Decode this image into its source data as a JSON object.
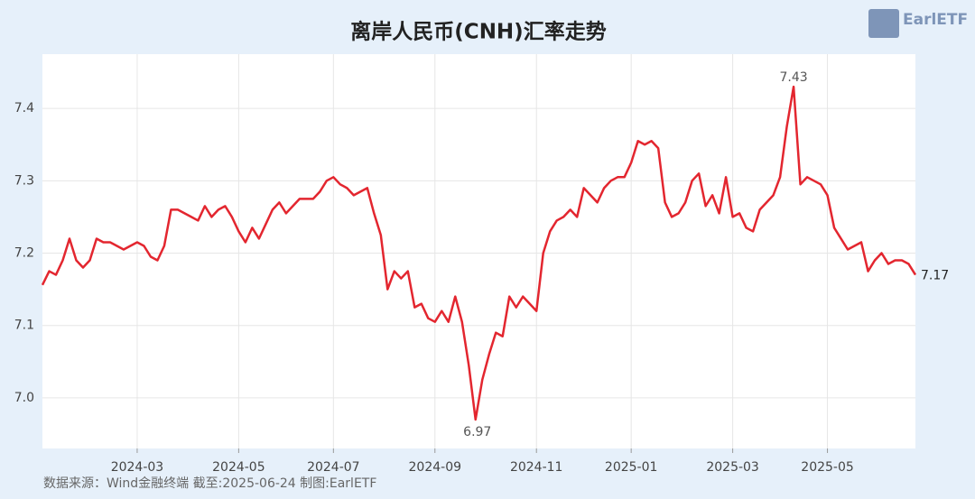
{
  "chart_data": {
    "type": "line",
    "title": "离岸人民币(CNH)汇率走势",
    "source": "数据来源：Wind金融终端 截至:2025-06-24 制图:EarlETF",
    "logo": "EarlETF",
    "color": "#e3262f",
    "grid": true,
    "ylim": [
      6.93,
      7.475
    ],
    "yticks": [
      {
        "value": 7,
        "label": "7.0"
      },
      7.1,
      7.2,
      7.3,
      7.4
    ],
    "categories": [
      null,
      null,
      null,
      null,
      null,
      null,
      null,
      null,
      null,
      null,
      null,
      null,
      null,
      null,
      "2024-03",
      null,
      null,
      null,
      null,
      null,
      null,
      null,
      null,
      null,
      null,
      null,
      null,
      null,
      null,
      "2024-05",
      null,
      null,
      null,
      null,
      null,
      null,
      null,
      null,
      null,
      null,
      null,
      null,
      null,
      "2024-07",
      null,
      null,
      null,
      null,
      null,
      null,
      null,
      null,
      null,
      null,
      null,
      null,
      null,
      null,
      "2024-09",
      null,
      null,
      null,
      null,
      null,
      null,
      null,
      null,
      null,
      null,
      null,
      null,
      null,
      null,
      "2024-11",
      null,
      null,
      null,
      null,
      null,
      null,
      null,
      null,
      null,
      null,
      null,
      null,
      null,
      "2025-01",
      null,
      null,
      null,
      null,
      null,
      null,
      null,
      null,
      null,
      null,
      null,
      null,
      null,
      null,
      "2025-03",
      null,
      null,
      null,
      null,
      null,
      null,
      null,
      null,
      null,
      null,
      null,
      null,
      null,
      "2025-05",
      null,
      null,
      null,
      null,
      null,
      null,
      null,
      null,
      null,
      null,
      null,
      null,
      null
    ],
    "values": [
      7.156,
      7.175,
      7.17,
      7.19,
      7.22,
      7.19,
      7.18,
      7.19,
      7.22,
      7.215,
      7.215,
      7.21,
      7.205,
      7.21,
      7.215,
      7.21,
      7.195,
      7.19,
      7.21,
      7.26,
      7.26,
      7.255,
      7.25,
      7.245,
      7.265,
      7.25,
      7.26,
      7.265,
      7.25,
      7.23,
      7.215,
      7.235,
      7.22,
      7.24,
      7.26,
      7.27,
      7.255,
      7.265,
      7.275,
      7.275,
      7.275,
      7.285,
      7.3,
      7.305,
      7.295,
      7.29,
      7.28,
      7.285,
      7.29,
      7.255,
      7.225,
      7.15,
      7.175,
      7.165,
      7.175,
      7.125,
      7.13,
      7.11,
      7.105,
      7.12,
      7.105,
      7.14,
      7.105,
      7.045,
      6.97,
      7.025,
      7.06,
      7.09,
      7.085,
      7.14,
      7.125,
      7.14,
      7.13,
      7.12,
      7.2,
      7.23,
      7.245,
      7.25,
      7.26,
      7.25,
      7.29,
      7.28,
      7.27,
      7.29,
      7.3,
      7.305,
      7.305,
      7.325,
      7.355,
      7.35,
      7.355,
      7.345,
      7.27,
      7.25,
      7.255,
      7.27,
      7.3,
      7.31,
      7.265,
      7.28,
      7.255,
      7.305,
      7.25,
      7.255,
      7.235,
      7.23,
      7.26,
      7.27,
      7.28,
      7.305,
      7.375,
      7.43,
      7.295,
      7.305,
      7.3,
      7.295,
      7.28,
      7.235,
      7.22,
      7.205,
      7.21,
      7.215,
      7.175,
      7.19,
      7.2,
      7.185,
      7.19,
      7.19,
      7.185,
      7.17
    ],
    "value_labels": [
      null,
      null,
      null,
      null,
      null,
      null,
      null,
      null,
      null,
      null,
      null,
      null,
      null,
      null,
      null,
      null,
      null,
      null,
      null,
      null,
      null,
      null,
      null,
      null,
      null,
      null,
      null,
      null,
      null,
      null,
      null,
      null,
      null,
      null,
      null,
      null,
      null,
      null,
      null,
      null,
      null,
      null,
      null,
      null,
      null,
      null,
      null,
      null,
      null,
      null,
      null,
      null,
      null,
      null,
      null,
      null,
      null,
      null,
      null,
      null,
      null,
      null,
      null,
      null,
      "6.97",
      null,
      null,
      null,
      null,
      null,
      null,
      null,
      null,
      null,
      null,
      null,
      null,
      null,
      null,
      null,
      null,
      null,
      null,
      null,
      null,
      null,
      null,
      null,
      null,
      null,
      null,
      null,
      null,
      null,
      null,
      null,
      null,
      null,
      null,
      null,
      null,
      null,
      null,
      null,
      null,
      null,
      null,
      null,
      null,
      null,
      null,
      "7.43",
      null,
      null,
      null,
      null,
      null,
      null,
      null,
      null,
      null,
      null,
      null,
      null,
      null,
      null,
      null,
      null,
      null,
      "7.17"
    ]
  }
}
